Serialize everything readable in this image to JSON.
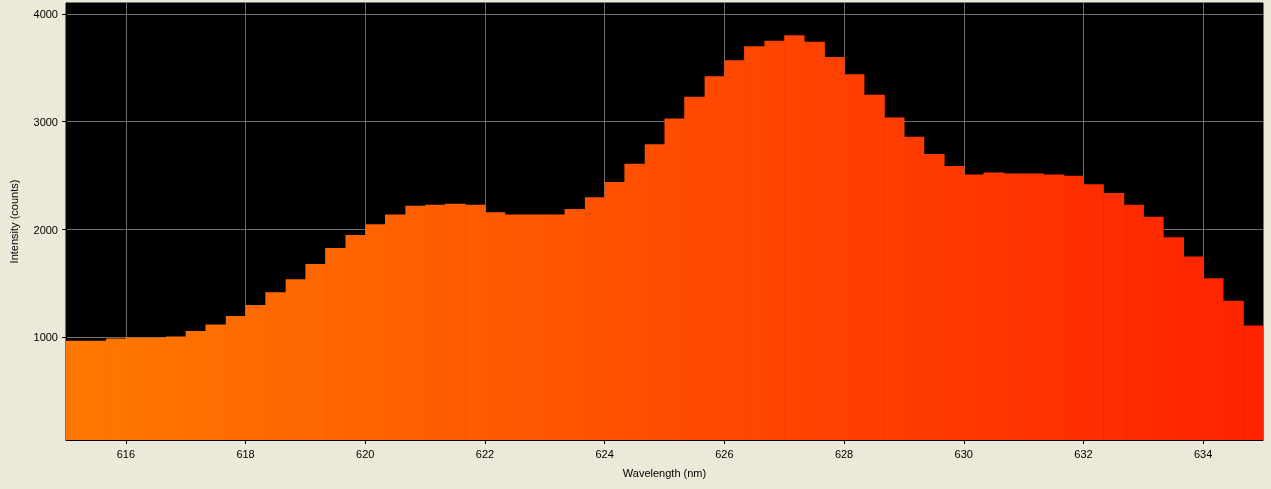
{
  "chart_data": {
    "type": "histogram",
    "xlabel": "Wavelength (nm)",
    "ylabel": "Intensity (counts)",
    "bins": [
      615,
      615.33,
      615.67,
      616,
      616.33,
      616.67,
      617,
      617.33,
      617.67,
      618,
      618.33,
      618.67,
      619,
      619.33,
      619.67,
      620,
      620.33,
      620.67,
      621,
      621.33,
      621.67,
      622,
      622.33,
      622.67,
      623,
      623.33,
      623.67,
      624,
      624.33,
      624.67,
      625,
      625.33,
      625.67,
      626,
      626.33,
      626.67,
      627,
      627.33,
      627.67,
      628,
      628.33,
      628.67,
      629,
      629.33,
      629.67,
      630,
      630.33,
      630.67,
      631,
      631.33,
      631.67,
      632,
      632.33,
      632.67,
      633,
      633.33,
      633.67,
      634,
      634.33,
      634.67,
      635
    ],
    "values": [
      970,
      970,
      990,
      1000,
      1000,
      1010,
      1060,
      1120,
      1200,
      1300,
      1420,
      1540,
      1680,
      1830,
      1950,
      2050,
      2140,
      2220,
      2230,
      2240,
      2230,
      2160,
      2140,
      2140,
      2140,
      2190,
      2300,
      2440,
      2610,
      2790,
      3030,
      3230,
      3420,
      3570,
      3700,
      3750,
      3800,
      3740,
      3600,
      3440,
      3250,
      3040,
      2860,
      2700,
      2590,
      2510,
      2530,
      2520,
      2520,
      2510,
      2500,
      2420,
      2340,
      2230,
      2120,
      1930,
      1750,
      1550,
      1340,
      1110
    ],
    "colors": [
      "#ff7800",
      "#ff7700",
      "#ff7500",
      "#ff7400",
      "#ff7200",
      "#ff7100",
      "#ff6f00",
      "#ff6e00",
      "#ff6c00",
      "#ff6b00",
      "#ff6a00",
      "#ff6800",
      "#ff6700",
      "#ff6500",
      "#ff6400",
      "#ff6200",
      "#ff6100",
      "#ff5f00",
      "#ff5e00",
      "#ff5c00",
      "#ff5b00",
      "#ff5a00",
      "#ff5800",
      "#ff5700",
      "#ff5500",
      "#ff5400",
      "#ff5200",
      "#ff5100",
      "#ff4f00",
      "#ff4e00",
      "#ff4c00",
      "#ff4b00",
      "#ff4a00",
      "#ff4800",
      "#ff4700",
      "#ff4500",
      "#ff4400",
      "#ff4200",
      "#ff4100",
      "#ff3f00",
      "#ff3e00",
      "#ff3d00",
      "#ff3b00",
      "#ff3a00",
      "#ff3800",
      "#ff3700",
      "#ff3500",
      "#ff3400",
      "#ff3200",
      "#ff3100",
      "#ff2f00",
      "#ff2e00",
      "#ff2d00",
      "#ff2b00",
      "#ff2a00",
      "#ff2800",
      "#ff2700",
      "#ff2500",
      "#ff2400",
      "#ff2200"
    ],
    "xlim": [
      615,
      635
    ],
    "xticks": [
      616,
      618,
      620,
      622,
      624,
      626,
      628,
      630,
      632,
      634
    ],
    "ylim": [
      50,
      4100
    ],
    "yticks": [
      1000,
      2000,
      3000,
      4000
    ],
    "grid": true
  }
}
